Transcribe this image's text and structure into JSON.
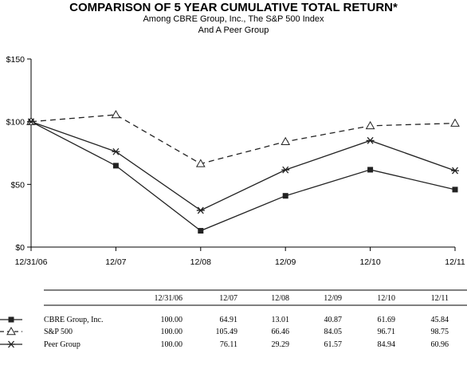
{
  "chart_data": {
    "type": "line",
    "title": "COMPARISON OF 5 YEAR CUMULATIVE TOTAL RETURN*",
    "subtitle": [
      "Among CBRE Group, Inc., The S&P 500 Index",
      "And A Peer Group"
    ],
    "categories": [
      "12/31/06",
      "12/07",
      "12/08",
      "12/09",
      "12/10",
      "12/11"
    ],
    "y_ticks": [
      "$0",
      "$50",
      "$100",
      "$150"
    ],
    "ylim": [
      0,
      150
    ],
    "grid": false,
    "series": [
      {
        "name": "CBRE Group, Inc.",
        "marker": "square",
        "dash": false,
        "values": [
          100.0,
          64.91,
          13.01,
          40.87,
          61.69,
          45.84
        ],
        "labels": [
          "100.00",
          "64.91",
          "13.01",
          "40.87",
          "61.69",
          "45.84"
        ]
      },
      {
        "name": "S&P 500",
        "marker": "triangle",
        "dash": true,
        "values": [
          100.0,
          105.49,
          66.46,
          84.05,
          96.71,
          98.75
        ],
        "labels": [
          "100.00",
          "105.49",
          "66.46",
          "84.05",
          "96.71",
          "98.75"
        ]
      },
      {
        "name": "Peer Group",
        "marker": "asterisk",
        "dash": false,
        "values": [
          100.0,
          76.11,
          29.29,
          61.57,
          84.94,
          60.96
        ],
        "labels": [
          "100.00",
          "76.11",
          "29.29",
          "61.57",
          "84.94",
          "60.96"
        ]
      }
    ]
  }
}
